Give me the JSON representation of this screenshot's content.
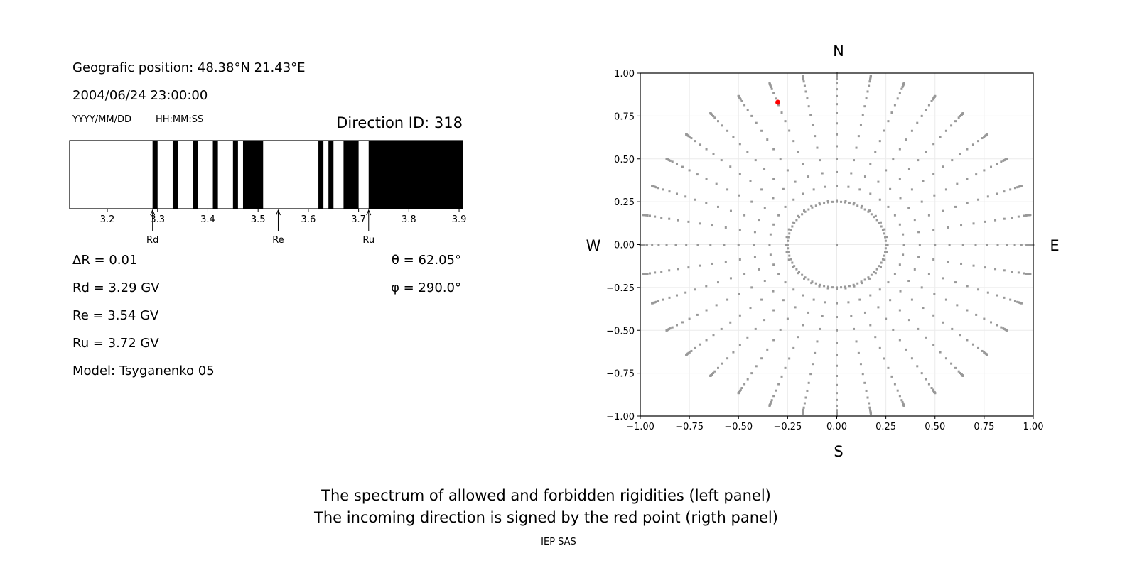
{
  "info": {
    "position": "Geografic position: 48.38°N 21.43°E",
    "datetime": "2004/06/24 23:00:00",
    "date_format": "YYYY/MM/DD",
    "time_format": "HH:MM:SS",
    "direction_id": "Direction ID: 318",
    "delta_r": "ΔR = 0.01",
    "rd": "Rd = 3.29 GV",
    "re": "Re = 3.54 GV",
    "ru": "Ru = 3.72 GV",
    "model": "Model: Tsyganenko 05",
    "theta": "θ = 62.05°",
    "phi": "φ = 290.0°"
  },
  "caption": {
    "line1": "The spectrum of allowed and forbidden rigidities (left panel)",
    "line2": "The incoming direction is signed by the red point (rigth panel)",
    "credit": "IEP SAS"
  },
  "chart_data": [
    {
      "type": "bar",
      "description_kind": "rigidity spectrum (black = forbidden)",
      "xlim": [
        3.125,
        3.907
      ],
      "xticks": [
        "3.2",
        "3.3",
        "3.4",
        "3.5",
        "3.6",
        "3.7",
        "3.8",
        "3.9"
      ],
      "forbidden_bands": [
        [
          3.29,
          3.3
        ],
        [
          3.33,
          3.34
        ],
        [
          3.37,
          3.38
        ],
        [
          3.41,
          3.42
        ],
        [
          3.45,
          3.46
        ],
        [
          3.47,
          3.51
        ],
        [
          3.62,
          3.63
        ],
        [
          3.64,
          3.65
        ],
        [
          3.67,
          3.7
        ],
        [
          3.72,
          3.907
        ]
      ],
      "markers": [
        {
          "label": "Rd",
          "x": 3.29
        },
        {
          "label": "Re",
          "x": 3.54
        },
        {
          "label": "Ru",
          "x": 3.72
        }
      ],
      "colors": {
        "forbidden": "#000000",
        "allowed": "#ffffff"
      }
    },
    {
      "type": "scatter",
      "xlim": [
        -1,
        1
      ],
      "ylim": [
        -1,
        1
      ],
      "grid": true,
      "xticks": [
        "−1.00",
        "−0.75",
        "−0.50",
        "−0.25",
        "0.00",
        "0.25",
        "0.50",
        "0.75",
        "1.00"
      ],
      "yticks": [
        "1.00",
        "0.75",
        "0.50",
        "0.25",
        "0.00",
        "−0.25",
        "−0.50",
        "−0.75",
        "−1.00"
      ],
      "compass": {
        "n": "N",
        "s": "S",
        "e": "E",
        "w": "W"
      },
      "grid_azimuth_step_deg": 10,
      "grid_zenith_deg": [
        15,
        20,
        25,
        30,
        35,
        40,
        45,
        50,
        55,
        60,
        65,
        70,
        75,
        78,
        80,
        82,
        84,
        85,
        86,
        87,
        88,
        89,
        90
      ],
      "inner_ring_radius": 0.25,
      "center_point": [
        0,
        0
      ],
      "highlight_point": [
        -0.3,
        0.83
      ],
      "colors": {
        "grid_points": "#999999",
        "highlight": "#ff0000"
      }
    }
  ]
}
